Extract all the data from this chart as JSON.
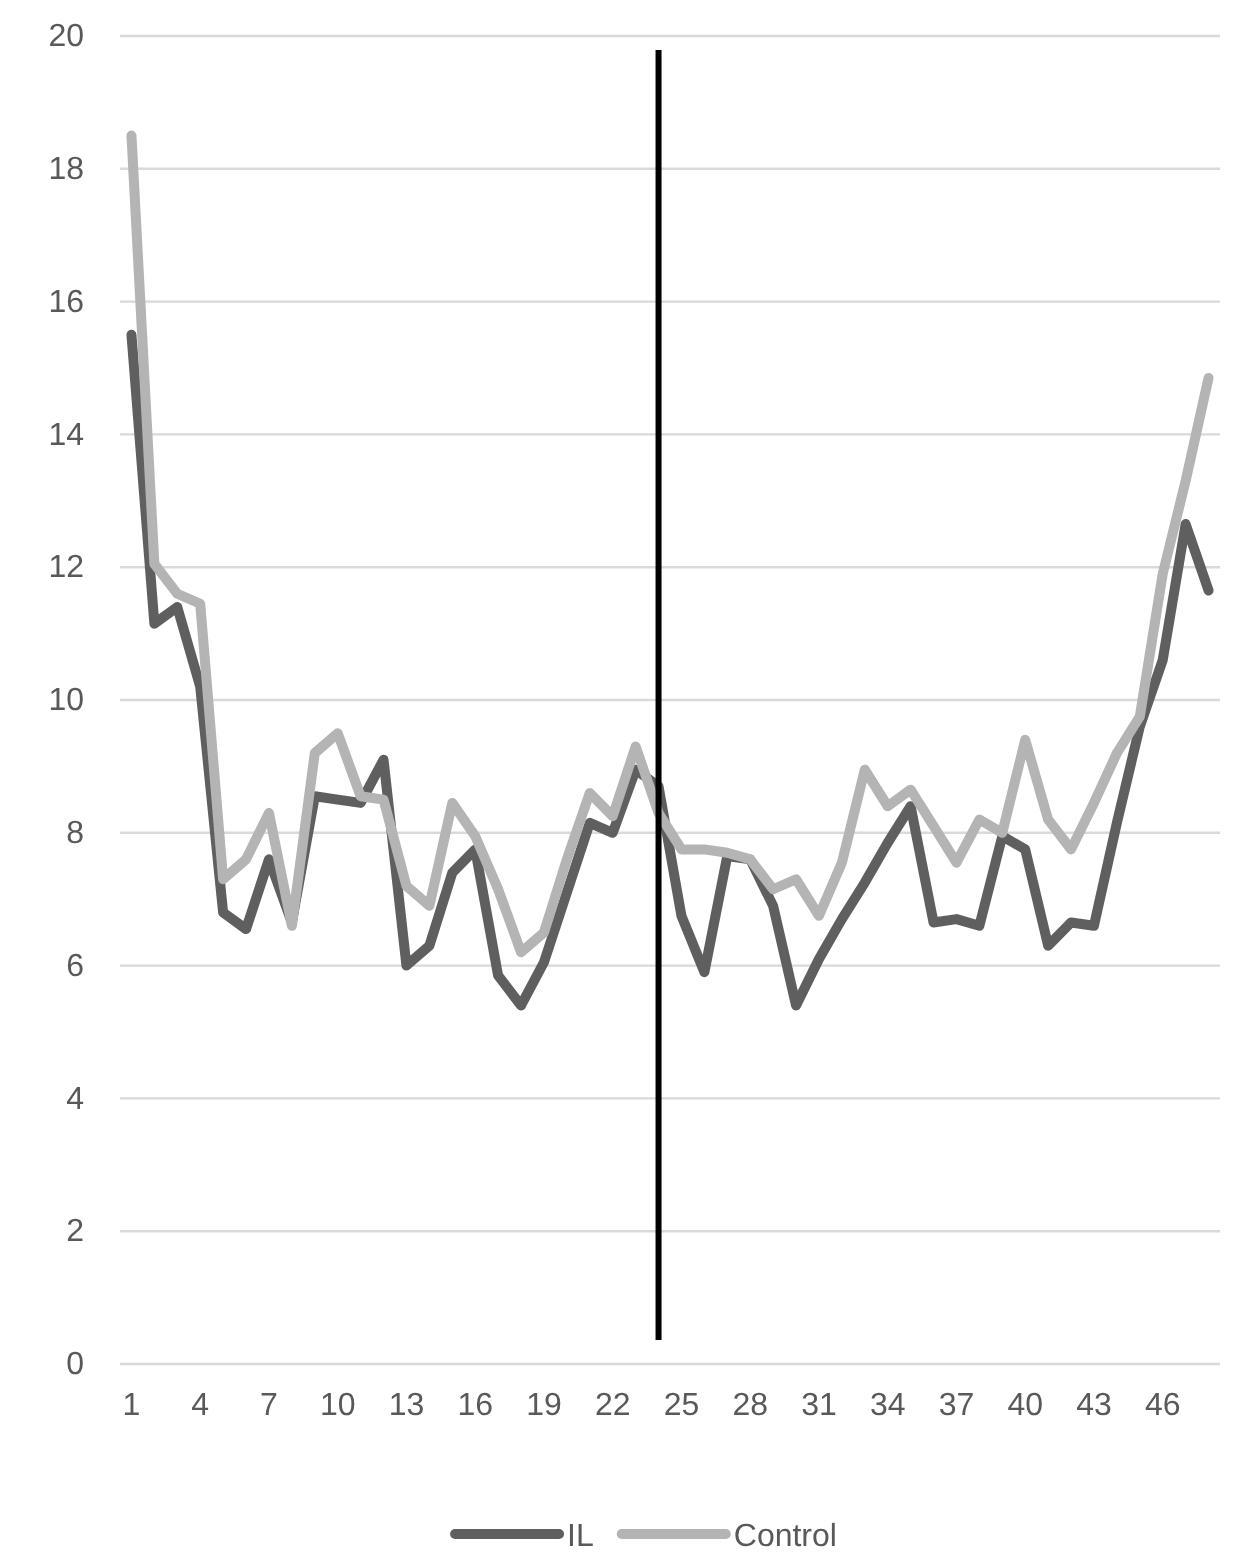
{
  "chart_data": {
    "type": "line",
    "x": [
      1,
      2,
      3,
      4,
      5,
      6,
      7,
      8,
      9,
      10,
      11,
      12,
      13,
      14,
      15,
      16,
      17,
      18,
      19,
      20,
      21,
      22,
      23,
      24,
      25,
      26,
      27,
      28,
      29,
      30,
      31,
      32,
      33,
      34,
      35,
      36,
      37,
      38,
      39,
      40,
      41,
      42,
      43,
      44,
      45,
      46,
      47,
      48
    ],
    "xlim": [
      0.5,
      48.5
    ],
    "xticks": [
      1,
      4,
      7,
      10,
      13,
      16,
      19,
      22,
      25,
      28,
      31,
      34,
      37,
      40,
      43,
      46
    ],
    "ylim": [
      0,
      20
    ],
    "yticks": [
      0,
      2,
      4,
      6,
      8,
      10,
      12,
      14,
      16,
      18,
      20
    ],
    "grid": "y",
    "legend": "bottom",
    "marker": "none",
    "line_style": "solid",
    "series": [
      {
        "name": "IL",
        "color": "#5f5f5f",
        "values": [
          15.5,
          11.15,
          11.4,
          10.2,
          6.8,
          6.55,
          7.6,
          6.65,
          8.55,
          8.5,
          8.45,
          9.1,
          6.0,
          6.3,
          7.4,
          7.75,
          5.85,
          5.4,
          6.05,
          7.1,
          8.15,
          8.0,
          8.95,
          8.7,
          6.75,
          5.9,
          7.65,
          7.6,
          6.9,
          5.4,
          6.1,
          6.7,
          7.25,
          7.85,
          8.4,
          6.65,
          6.7,
          6.6,
          7.95,
          7.75,
          6.3,
          6.65,
          6.6,
          8.15,
          9.6,
          10.6,
          12.65,
          11.65
        ]
      },
      {
        "name": "Control",
        "color": "#b4b4b4",
        "values": [
          18.5,
          12.05,
          11.6,
          11.45,
          7.3,
          7.6,
          8.3,
          6.6,
          9.2,
          9.5,
          8.55,
          8.5,
          7.2,
          6.9,
          8.45,
          7.95,
          7.15,
          6.2,
          6.5,
          7.6,
          8.6,
          8.25,
          9.3,
          8.3,
          7.75,
          7.75,
          7.7,
          7.6,
          7.15,
          7.3,
          6.75,
          7.55,
          8.95,
          8.4,
          8.65,
          8.1,
          7.55,
          8.2,
          8.0,
          9.4,
          8.2,
          7.75,
          8.45,
          9.2,
          9.75,
          11.9,
          13.3,
          14.85
        ]
      }
    ],
    "ref_lines": [
      {
        "axis": "x",
        "value": 24,
        "color": "#000000"
      }
    ]
  }
}
